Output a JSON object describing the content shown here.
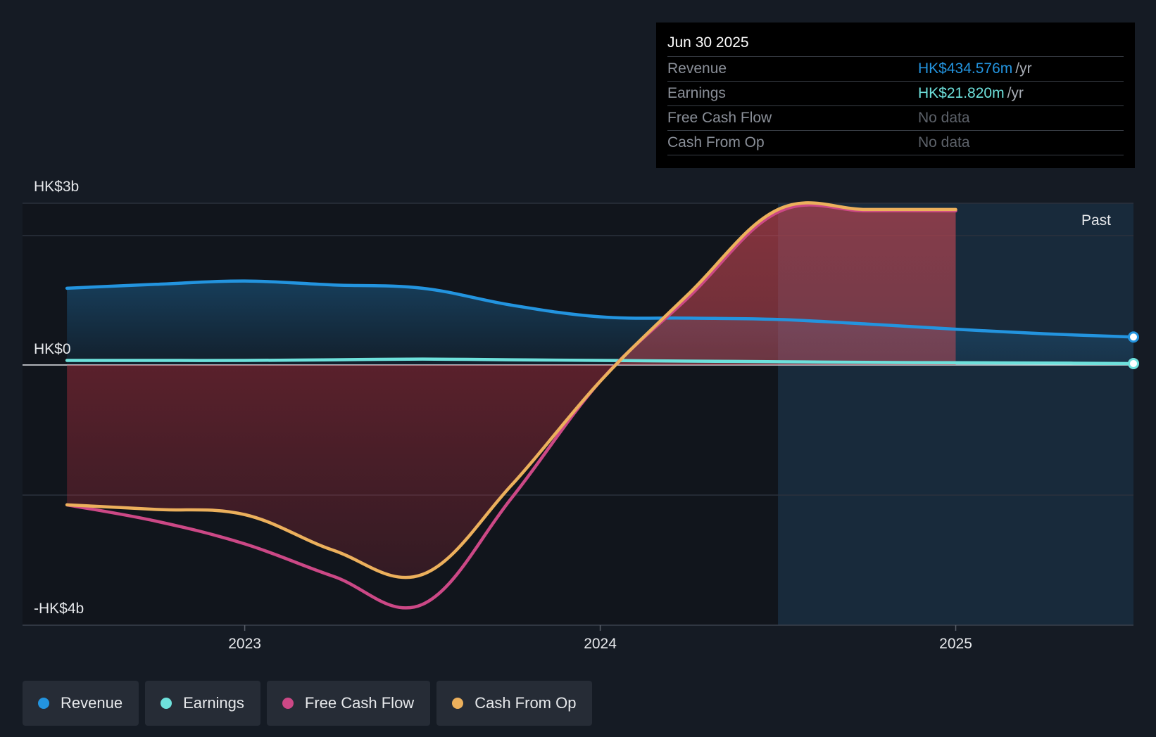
{
  "colors": {
    "revenue": "#2394df",
    "earnings": "#6ee1dc",
    "fcf": "#cc4886",
    "cfo": "#ecb05c",
    "background": "#151b24",
    "past_band": "#182a3b"
  },
  "tooltip": {
    "date": "Jun 30 2025",
    "rows": [
      {
        "label": "Revenue",
        "value": "HK$434.576m",
        "unit": "/yr"
      },
      {
        "label": "Earnings",
        "value": "HK$21.820m",
        "unit": "/yr"
      },
      {
        "label": "Free Cash Flow",
        "value": "No data"
      },
      {
        "label": "Cash From Op",
        "value": "No data"
      }
    ]
  },
  "past_label": "Past",
  "legend": [
    {
      "label": "Revenue",
      "icon": "dot-icon"
    },
    {
      "label": "Earnings",
      "icon": "dot-icon"
    },
    {
      "label": "Free Cash Flow",
      "icon": "dot-icon"
    },
    {
      "label": "Cash From Op",
      "icon": "dot-icon"
    }
  ],
  "chart_data": {
    "type": "area",
    "title": "",
    "xlabel": "",
    "ylabel": "",
    "y_tick_labels": [
      "HK$3b",
      "HK$0",
      "-HK$4b"
    ],
    "ylim": [
      -4.0,
      2.5
    ],
    "xlim": [
      2022.375,
      2025.5
    ],
    "x_ticks": [
      {
        "value": 2023,
        "label": "2023"
      },
      {
        "value": 2024,
        "label": "2024"
      },
      {
        "value": 2025,
        "label": "2025"
      }
    ],
    "past_start": 2024.5,
    "series": [
      {
        "name": "Revenue",
        "key": "revenue",
        "points": [
          [
            2022.5,
            1.18
          ],
          [
            2022.75,
            1.24
          ],
          [
            2023.0,
            1.29
          ],
          [
            2023.25,
            1.23
          ],
          [
            2023.5,
            1.18
          ],
          [
            2023.75,
            0.92
          ],
          [
            2024.0,
            0.74
          ],
          [
            2024.25,
            0.72
          ],
          [
            2024.5,
            0.7
          ],
          [
            2024.75,
            0.63
          ],
          [
            2025.0,
            0.55
          ],
          [
            2025.25,
            0.48
          ],
          [
            2025.5,
            0.43
          ]
        ]
      },
      {
        "name": "Earnings",
        "key": "earnings",
        "points": [
          [
            2022.5,
            0.07
          ],
          [
            2022.75,
            0.07
          ],
          [
            2023.0,
            0.07
          ],
          [
            2023.25,
            0.08
          ],
          [
            2023.5,
            0.09
          ],
          [
            2023.75,
            0.08
          ],
          [
            2024.0,
            0.07
          ],
          [
            2024.25,
            0.06
          ],
          [
            2024.5,
            0.05
          ],
          [
            2024.75,
            0.04
          ],
          [
            2025.0,
            0.035
          ],
          [
            2025.25,
            0.03
          ],
          [
            2025.5,
            0.022
          ]
        ]
      },
      {
        "name": "Free Cash Flow",
        "key": "fcf",
        "points": [
          [
            2022.5,
            -2.15
          ],
          [
            2022.75,
            -2.4
          ],
          [
            2023.0,
            -2.75
          ],
          [
            2023.25,
            -3.25
          ],
          [
            2023.5,
            -3.68
          ],
          [
            2023.75,
            -2.05
          ],
          [
            2024.0,
            -0.25
          ],
          [
            2024.25,
            1.05
          ],
          [
            2024.5,
            2.35
          ],
          [
            2024.75,
            2.37
          ],
          [
            2025.0,
            2.37
          ]
        ]
      },
      {
        "name": "Cash From Op",
        "key": "cfo",
        "points": [
          [
            2022.5,
            -2.15
          ],
          [
            2022.75,
            -2.22
          ],
          [
            2023.0,
            -2.3
          ],
          [
            2023.25,
            -2.85
          ],
          [
            2023.5,
            -3.22
          ],
          [
            2023.75,
            -1.85
          ],
          [
            2024.0,
            -0.25
          ],
          [
            2024.25,
            1.1
          ],
          [
            2024.5,
            2.39
          ],
          [
            2024.75,
            2.39
          ],
          [
            2025.0,
            2.39
          ]
        ]
      }
    ]
  }
}
